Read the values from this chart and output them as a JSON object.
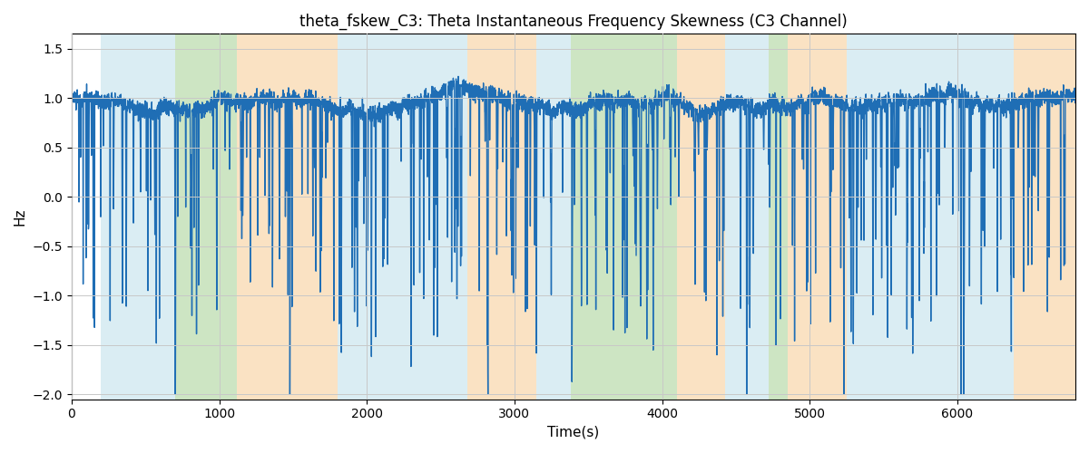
{
  "title": "theta_fskew_C3: Theta Instantaneous Frequency Skewness (C3 Channel)",
  "xlabel": "Time(s)",
  "ylabel": "Hz",
  "xlim": [
    0,
    6800
  ],
  "ylim": [
    -2.05,
    1.65
  ],
  "line_color": "#1f6eb5",
  "line_width": 1.0,
  "bg_bands": [
    {
      "xmin": 200,
      "xmax": 700,
      "color": "#add8e6",
      "alpha": 0.45
    },
    {
      "xmin": 700,
      "xmax": 1120,
      "color": "#90c77a",
      "alpha": 0.45
    },
    {
      "xmin": 1120,
      "xmax": 1800,
      "color": "#f5c07a",
      "alpha": 0.45
    },
    {
      "xmin": 1800,
      "xmax": 2680,
      "color": "#add8e6",
      "alpha": 0.45
    },
    {
      "xmin": 2680,
      "xmax": 3150,
      "color": "#f5c07a",
      "alpha": 0.45
    },
    {
      "xmin": 3150,
      "xmax": 3380,
      "color": "#add8e6",
      "alpha": 0.45
    },
    {
      "xmin": 3380,
      "xmax": 4100,
      "color": "#90c77a",
      "alpha": 0.45
    },
    {
      "xmin": 4100,
      "xmax": 4430,
      "color": "#f5c07a",
      "alpha": 0.45
    },
    {
      "xmin": 4430,
      "xmax": 4720,
      "color": "#add8e6",
      "alpha": 0.45
    },
    {
      "xmin": 4720,
      "xmax": 4850,
      "color": "#90c77a",
      "alpha": 0.45
    },
    {
      "xmin": 4850,
      "xmax": 5250,
      "color": "#f5c07a",
      "alpha": 0.45
    },
    {
      "xmin": 5250,
      "xmax": 6380,
      "color": "#add8e6",
      "alpha": 0.45
    },
    {
      "xmin": 6380,
      "xmax": 6800,
      "color": "#f5c07a",
      "alpha": 0.45
    }
  ],
  "grid_color": "#c8c8c8",
  "yticks": [
    -2.0,
    -1.5,
    -1.0,
    -0.5,
    0.0,
    0.5,
    1.0,
    1.5
  ],
  "xticks": [
    0,
    1000,
    2000,
    3000,
    4000,
    5000,
    6000
  ],
  "n_points": 6800,
  "seed": 7
}
